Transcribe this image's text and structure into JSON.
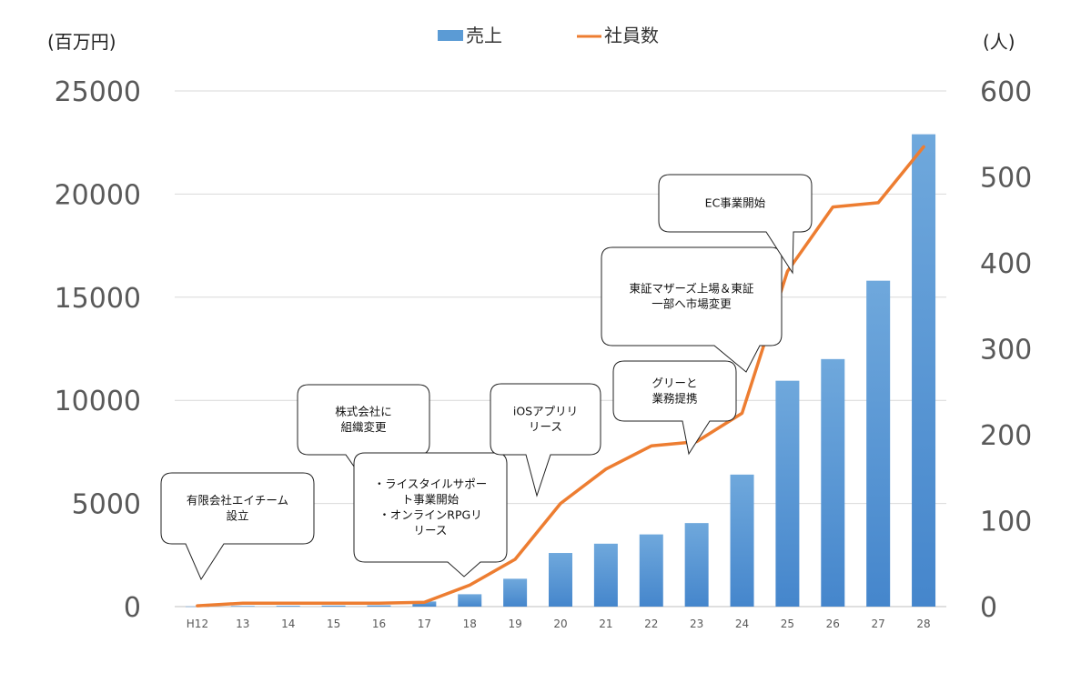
{
  "chart_data": {
    "type": "bar",
    "categories": [
      "H12",
      "13",
      "14",
      "15",
      "16",
      "17",
      "18",
      "19",
      "20",
      "21",
      "22",
      "23",
      "24",
      "25",
      "26",
      "27",
      "28"
    ],
    "series": [
      {
        "name": "売上",
        "type": "bar",
        "axis": "left",
        "color": "#5b9bd5",
        "values": [
          10,
          30,
          40,
          50,
          60,
          250,
          600,
          1350,
          2600,
          3050,
          3500,
          4050,
          6400,
          10950,
          12000,
          15800,
          22900
        ]
      },
      {
        "name": "社員数",
        "type": "line",
        "axis": "right",
        "color": "#ed7d31",
        "values": [
          1,
          4,
          4,
          4,
          4,
          5,
          25,
          55,
          120,
          160,
          187,
          192,
          225,
          390,
          465,
          470,
          535
        ]
      }
    ],
    "y_left": {
      "unit_label": "(百万円)",
      "ylim": [
        0,
        25000
      ],
      "ticks": [
        "0",
        "5000",
        "10000",
        "15000",
        "20000",
        "25000"
      ]
    },
    "y_right": {
      "unit_label": "(人)",
      "ylim": [
        0,
        600
      ],
      "ticks": [
        "0",
        "100",
        "200",
        "300",
        "400",
        "500",
        "600"
      ]
    },
    "grid": true,
    "legend_position": "top-center",
    "annotations": [
      {
        "lines": [
          "有限会社エイチーム",
          "設立"
        ]
      },
      {
        "lines": [
          "株式会社に",
          "組織変更"
        ]
      },
      {
        "lines": [
          "・ライスタイルサポー",
          "ト事業開始",
          "・オンラインRPGリ",
          "リース"
        ]
      },
      {
        "lines": [
          "iOSアプリリ",
          "リース"
        ]
      },
      {
        "lines": [
          "グリーと",
          "業務提携"
        ]
      },
      {
        "lines": [
          "東証マザーズ上場＆東証",
          "一部へ市場変更"
        ]
      },
      {
        "lines": [
          "EC事業開始"
        ]
      }
    ]
  }
}
